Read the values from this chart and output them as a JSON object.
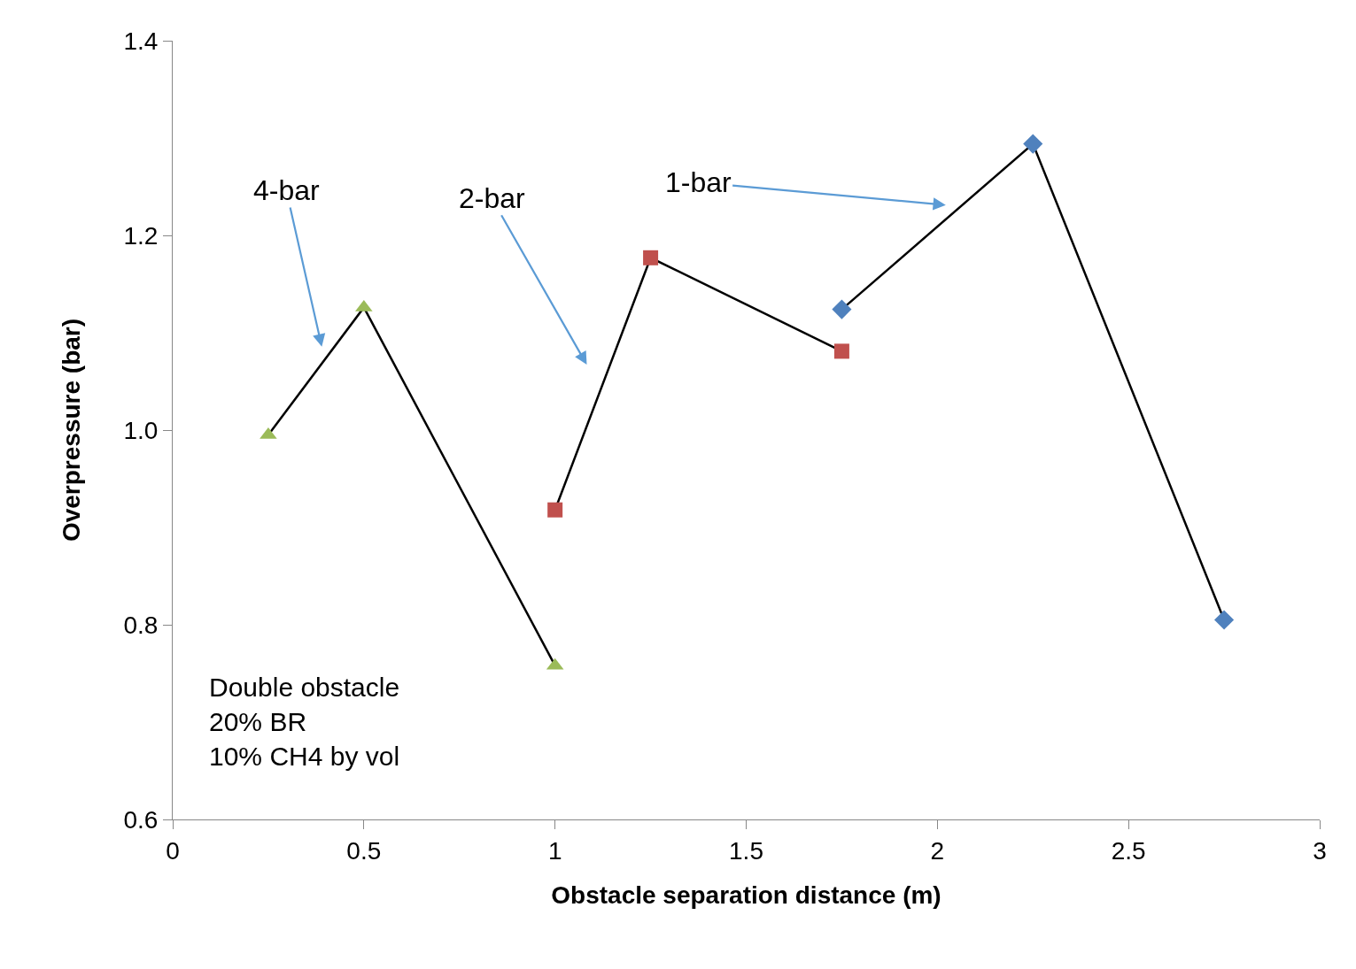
{
  "chart_data": {
    "type": "line",
    "xlabel": "Obstacle separation distance (m)",
    "ylabel": "Overpressure (bar)",
    "xlim": [
      0,
      3
    ],
    "xticks": [
      0,
      0.5,
      1,
      1.5,
      2,
      2.5,
      3
    ],
    "ylim": [
      0.6,
      1.4
    ],
    "yticks": [
      {
        "value": 0.6,
        "label": "0.6"
      },
      {
        "value": 0.8,
        "label": "0.8"
      },
      {
        "value": 1,
        "label": "1.0"
      },
      {
        "value": 1.2,
        "label": "1.2"
      },
      {
        "value": 1.4,
        "label": "1.4"
      }
    ],
    "line_style": "solid",
    "series": [
      {
        "color": "#9bbb59",
        "marker": "triangle",
        "x": [
          0.25,
          0.5,
          1.0
        ],
        "values": [
          0.995,
          1.126,
          0.758
        ]
      },
      {
        "color": "#c0504d",
        "marker": "square",
        "x": [
          1.0,
          1.25,
          1.75
        ],
        "values": [
          0.918,
          1.177,
          1.081
        ]
      },
      {
        "color": "#4f81bd",
        "marker": "diamond",
        "x": [
          1.75,
          2.25,
          2.75
        ],
        "values": [
          1.124,
          1.294,
          0.805
        ]
      }
    ],
    "annotations": [
      "4-bar",
      "2-bar",
      "1-bar",
      "Double obstacle\n20% BR\n10% CH4 by vol"
    ]
  }
}
